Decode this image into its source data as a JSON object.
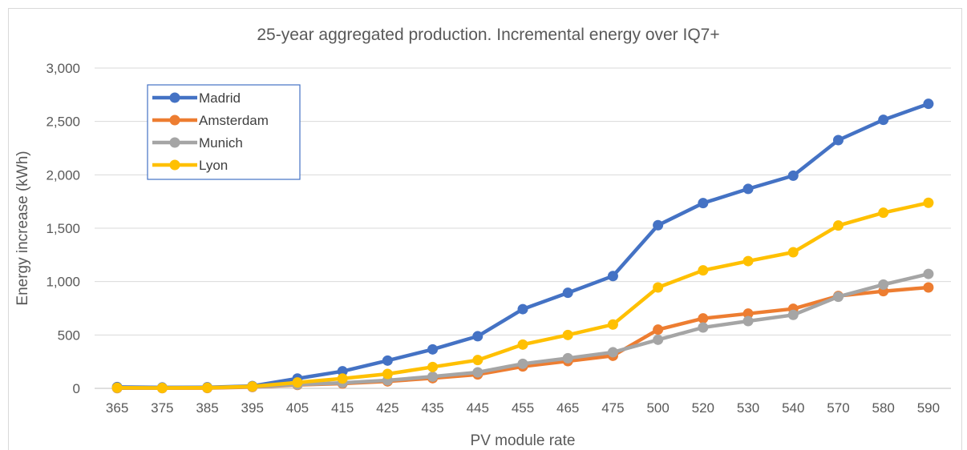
{
  "chart_data": {
    "type": "line",
    "title": "25-year aggregated production. Incremental energy over IQ7+",
    "xlabel": "PV module rate",
    "ylabel": "Energy increase (kWh)",
    "categories": [
      "365",
      "375",
      "385",
      "395",
      "405",
      "415",
      "425",
      "435",
      "445",
      "455",
      "465",
      "475",
      "500",
      "520",
      "530",
      "540",
      "570",
      "580",
      "590"
    ],
    "y_ticks": [
      "0",
      "500",
      "1,000",
      "1,500",
      "2,000",
      "2,500",
      "3,000"
    ],
    "ylim": [
      0,
      3000
    ],
    "grid": true,
    "legend_position": "top-left",
    "series": [
      {
        "name": "Madrid",
        "color": "#4472c4",
        "values": [
          12,
          8,
          10,
          22,
          92,
          160,
          260,
          365,
          488,
          742,
          895,
          1052,
          1528,
          1735,
          1868,
          1992,
          2325,
          2515,
          2665
        ]
      },
      {
        "name": "Amsterdam",
        "color": "#ed7d31",
        "values": [
          2,
          2,
          3,
          12,
          32,
          45,
          65,
          95,
          130,
          205,
          255,
          305,
          550,
          655,
          700,
          745,
          865,
          910,
          945
        ]
      },
      {
        "name": "Munich",
        "color": "#a5a5a5",
        "values": [
          4,
          4,
          5,
          15,
          35,
          52,
          75,
          110,
          150,
          230,
          282,
          338,
          455,
          570,
          630,
          688,
          858,
          972,
          1072
        ]
      },
      {
        "name": "Lyon",
        "color": "#ffc000",
        "values": [
          6,
          4,
          6,
          18,
          55,
          92,
          135,
          200,
          265,
          410,
          500,
          598,
          945,
          1105,
          1192,
          1275,
          1525,
          1645,
          1738
        ]
      }
    ]
  }
}
